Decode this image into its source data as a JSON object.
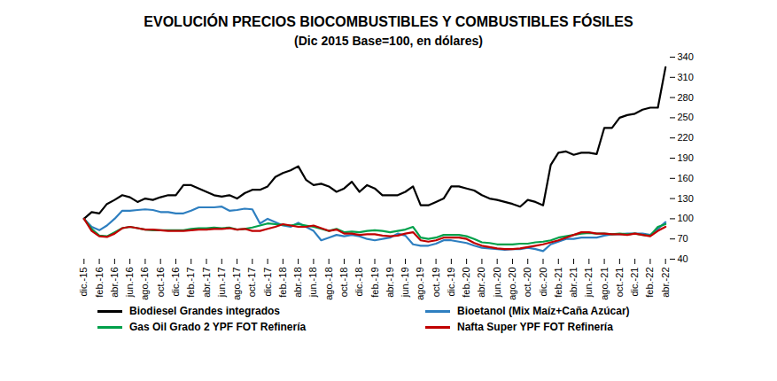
{
  "chart_data": {
    "type": "line",
    "title": "EVOLUCIÓN PRECIOS BIOCOMBUSTIBLES Y COMBUSTIBLES FÓSILES",
    "subtitle": "(Dic 2015 Base=100, en dólares)",
    "categories": [
      "dic.-15",
      null,
      "feb.-16",
      null,
      "abr.-16",
      null,
      "jun.-16",
      null,
      "ago.-16",
      null,
      "oct.-16",
      null,
      "dic.-16",
      null,
      "feb.-17",
      null,
      "abr.-17",
      null,
      "jun.-17",
      null,
      "ago.-17",
      null,
      "oct.-17",
      null,
      "dic.-17",
      null,
      "feb.-18",
      null,
      "abr.-18",
      null,
      "jun.-18",
      null,
      "ago.-18",
      null,
      "oct.-18",
      null,
      "dic.-18",
      null,
      "feb.-19",
      null,
      "abr.-19",
      null,
      "jun.-19",
      null,
      "ago.-19",
      null,
      "oct.-19",
      null,
      "dic.-19",
      null,
      "feb.-20",
      null,
      "abr.-20",
      null,
      "jun.-20",
      null,
      "ago.-20",
      null,
      "oct.-20",
      null,
      "dic.-20",
      null,
      "feb.-21",
      null,
      "abr.-21",
      null,
      "jun.-21",
      null,
      "ago.-21",
      null,
      "oct.-21",
      null,
      "dic.-21",
      null,
      "feb.-22",
      null,
      "abr.-22"
    ],
    "series": [
      {
        "name": "Biodiesel Grandes integrados",
        "color": "#000000",
        "values": [
          100,
          110,
          108,
          122,
          128,
          135,
          132,
          125,
          130,
          128,
          132,
          135,
          135,
          150,
          150,
          145,
          140,
          135,
          133,
          135,
          130,
          138,
          143,
          143,
          148,
          162,
          168,
          172,
          178,
          158,
          150,
          152,
          148,
          140,
          145,
          155,
          140,
          150,
          145,
          135,
          135,
          135,
          140,
          148,
          120,
          120,
          125,
          130,
          148,
          148,
          145,
          142,
          135,
          130,
          128,
          125,
          122,
          118,
          128,
          125,
          120,
          180,
          198,
          200,
          195,
          198,
          198,
          196,
          235,
          235,
          250,
          254,
          256,
          262,
          265,
          265,
          325
        ]
      },
      {
        "name": "Bioetanol (Mix Maíz+Caña Azúcar)",
        "color": "#2e7fc0",
        "values": [
          100,
          88,
          83,
          90,
          100,
          112,
          112,
          113,
          114,
          113,
          110,
          110,
          108,
          108,
          112,
          117,
          117,
          117,
          118,
          112,
          113,
          115,
          114,
          93,
          100,
          95,
          90,
          88,
          94,
          88,
          82,
          68,
          72,
          76,
          74,
          76,
          74,
          70,
          68,
          70,
          72,
          78,
          75,
          62,
          60,
          60,
          63,
          68,
          68,
          66,
          64,
          60,
          57,
          56,
          55,
          54,
          55,
          55,
          57,
          55,
          52,
          62,
          66,
          70,
          70,
          72,
          72,
          72,
          75,
          77,
          77,
          78,
          78,
          78,
          76,
          85,
          95
        ]
      },
      {
        "name": "Gas Oil Grado 2 YPF FOT Refinería",
        "color": "#00a04a",
        "values": [
          100,
          85,
          75,
          74,
          80,
          86,
          88,
          86,
          84,
          83,
          83,
          83,
          83,
          83,
          85,
          86,
          86,
          87,
          86,
          87,
          84,
          85,
          87,
          90,
          93,
          92,
          91,
          90,
          92,
          90,
          88,
          85,
          82,
          85,
          80,
          81,
          80,
          82,
          83,
          82,
          80,
          82,
          84,
          88,
          72,
          70,
          72,
          76,
          76,
          76,
          74,
          70,
          65,
          64,
          62,
          62,
          62,
          63,
          63,
          65,
          66,
          68,
          72,
          74,
          76,
          78,
          79,
          78,
          78,
          77,
          78,
          77,
          78,
          76,
          75,
          88,
          92
        ]
      },
      {
        "name": "Nafta Super YPF FOT Refinería",
        "color": "#c00000",
        "values": [
          100,
          82,
          74,
          73,
          78,
          86,
          88,
          86,
          84,
          84,
          83,
          82,
          82,
          82,
          83,
          84,
          84,
          85,
          85,
          86,
          84,
          85,
          82,
          82,
          85,
          88,
          92,
          90,
          88,
          88,
          90,
          86,
          82,
          84,
          78,
          78,
          76,
          77,
          77,
          75,
          74,
          75,
          78,
          80,
          68,
          66,
          68,
          72,
          72,
          72,
          70,
          64,
          60,
          58,
          56,
          55,
          55,
          56,
          58,
          60,
          62,
          65,
          68,
          72,
          76,
          80,
          80,
          78,
          78,
          77,
          77,
          76,
          78,
          76,
          74,
          82,
          88
        ]
      }
    ],
    "ylim": [
      40,
      340
    ],
    "yticks": [
      40,
      70,
      100,
      130,
      160,
      190,
      220,
      250,
      280,
      310,
      340
    ],
    "legend": "bottom"
  }
}
